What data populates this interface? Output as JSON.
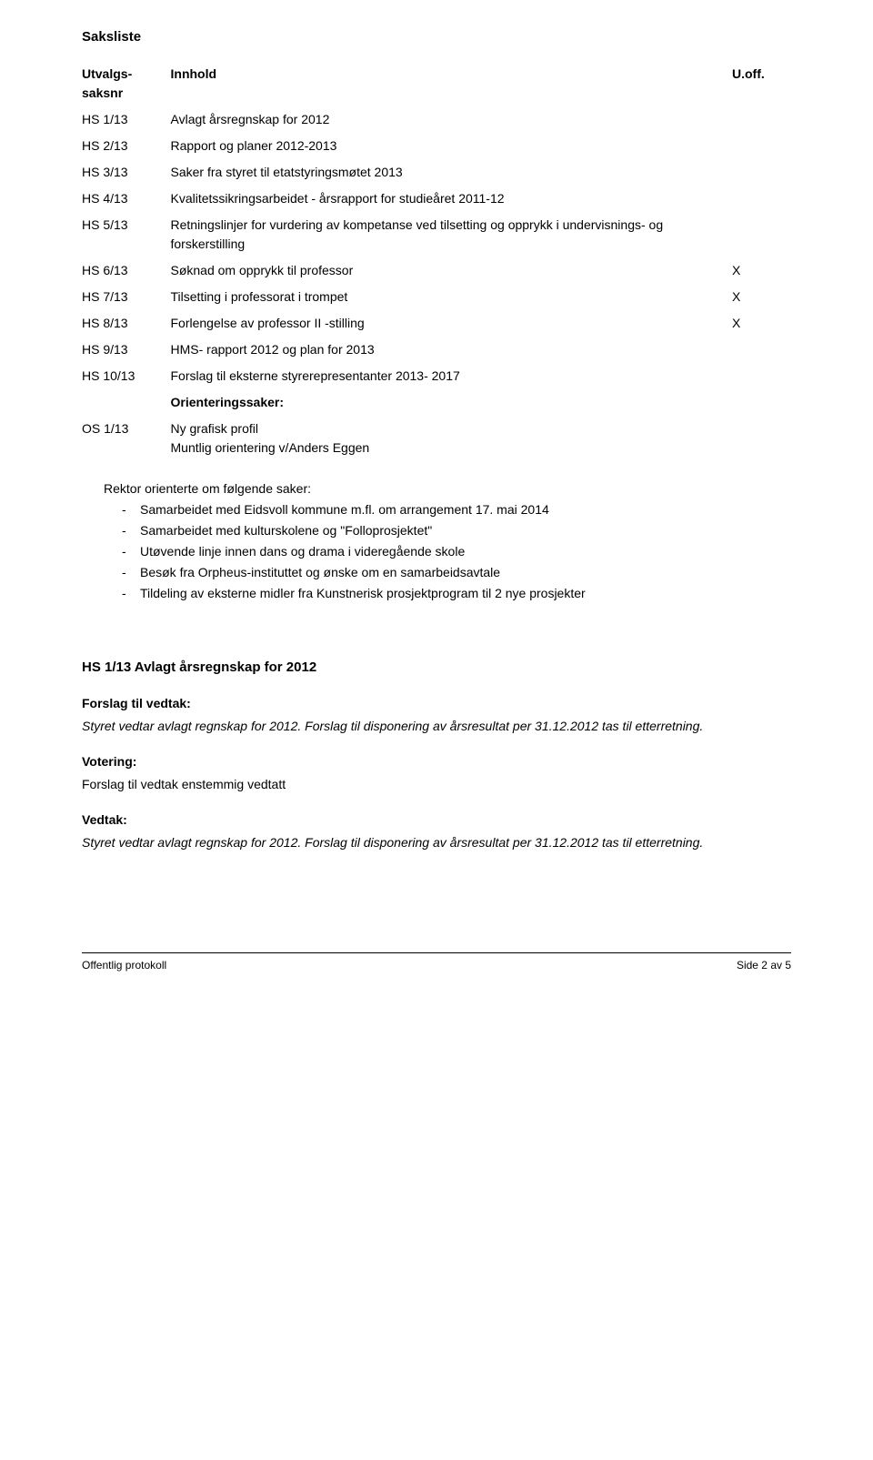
{
  "title": "Saksliste",
  "header": {
    "col1a": "Utvalgs-",
    "col1b": "saksnr",
    "col2": "Innhold",
    "col3": "U.off."
  },
  "rows": [
    {
      "id": "HS 1/13",
      "text": "Avlagt årsregnskap for 2012",
      "mark": ""
    },
    {
      "id": "HS 2/13",
      "text": "Rapport og planer 2012-2013",
      "mark": ""
    },
    {
      "id": "HS 3/13",
      "text": "Saker fra styret til etatstyringsmøtet 2013",
      "mark": ""
    },
    {
      "id": "HS 4/13",
      "text": "Kvalitetssikringsarbeidet - årsrapport for studieåret 2011-12",
      "mark": ""
    },
    {
      "id": "HS 5/13",
      "text": "Retningslinjer for vurdering av kompetanse ved tilsetting og opprykk i undervisnings- og forskerstilling",
      "mark": ""
    },
    {
      "id": "HS 6/13",
      "text": "Søknad om opprykk til professor",
      "mark": "X"
    },
    {
      "id": "HS 7/13",
      "text": "Tilsetting i professorat i trompet",
      "mark": "X"
    },
    {
      "id": "HS 8/13",
      "text": "Forlengelse av professor II -stilling",
      "mark": "X"
    },
    {
      "id": "HS 9/13",
      "text": "HMS- rapport 2012 og plan for 2013",
      "mark": ""
    },
    {
      "id": "HS 10/13",
      "text": "Forslag til eksterne styrerepresentanter 2013- 2017",
      "mark": ""
    }
  ],
  "orienteringssaker_label": "Orienteringssaker:",
  "os_row": {
    "id": "OS 1/13",
    "line1": "Ny grafisk profil",
    "line2": "Muntlig orientering v/Anders Eggen"
  },
  "rektor_intro": "Rektor orienterte om følgende saker:",
  "rektor_items": [
    "Samarbeidet med Eidsvoll kommune m.fl. om arrangement 17. mai 2014",
    "Samarbeidet med kulturskolene og \"Folloprosjektet\"",
    "Utøvende linje innen dans og drama i videregående skole",
    "Besøk fra Orpheus-instituttet og ønske om en samarbeidsavtale",
    "Tildeling av eksterne midler fra Kunstnerisk prosjektprogram til 2 nye prosjekter"
  ],
  "section1": {
    "heading": "HS 1/13 Avlagt årsregnskap for 2012",
    "forslag_label": "Forslag til vedtak:",
    "forslag_text": "Styret vedtar avlagt regnskap for 2012. Forslag til disponering av årsresultat per 31.12.2012 tas til etterretning.",
    "votering_label": "Votering:",
    "votering_text": "Forslag til vedtak enstemmig vedtatt",
    "vedtak_label": "Vedtak:",
    "vedtak_text": "Styret vedtar avlagt regnskap for 2012. Forslag til disponering av årsresultat per 31.12.2012 tas til etterretning."
  },
  "footer": {
    "left": "Offentlig protokoll",
    "right": "Side 2 av 5"
  }
}
